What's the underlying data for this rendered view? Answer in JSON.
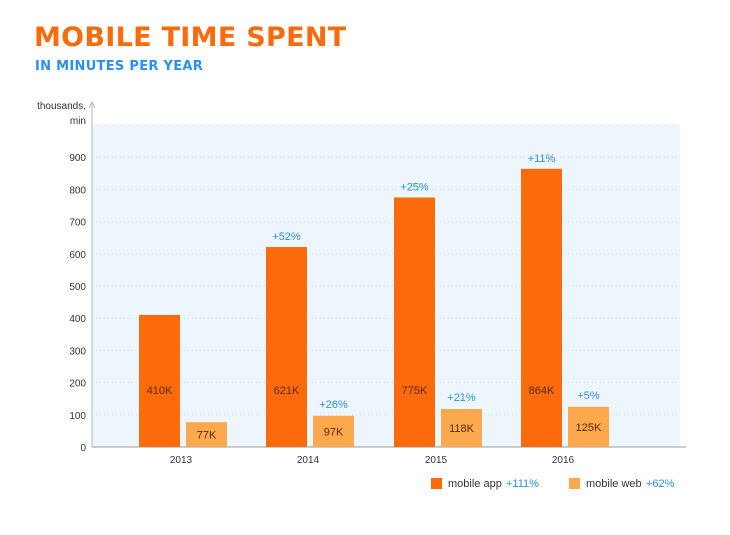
{
  "header": {
    "title": "MOBILE TIME SPENT",
    "subtitle": "IN MINUTES PER YEAR"
  },
  "colors": {
    "app": "#fb6b0b",
    "web": "#fca84c",
    "growth": "#2a8ff0",
    "plot_bg": "#eef6fd",
    "grid": "#cfe3f3"
  },
  "chart_data": {
    "type": "bar",
    "title": "MOBILE TIME SPENT",
    "subtitle": "IN MINUTES PER YEAR",
    "ylabel": "thousands, min",
    "xlabel": "",
    "categories": [
      "2013",
      "2014",
      "2015",
      "2016"
    ],
    "ylim": [
      0,
      1000
    ],
    "yticks": [
      0,
      100,
      200,
      300,
      400,
      500,
      600,
      700,
      800,
      900
    ],
    "grid": true,
    "legend_position": "bottom-right",
    "series": [
      {
        "name": "mobile app",
        "values": [
          410,
          621,
          775,
          864
        ],
        "labels": [
          "410K",
          "621K",
          "775K",
          "864K"
        ],
        "growth": [
          "",
          "+52%",
          "+25%",
          "+11%"
        ],
        "total_growth": "+111%"
      },
      {
        "name": "mobile web",
        "values": [
          77,
          97,
          118,
          125
        ],
        "labels": [
          "77K",
          "97K",
          "118K",
          "125K"
        ],
        "growth": [
          "",
          "+26%",
          "+21%",
          "+5%"
        ],
        "total_growth": "+62%"
      }
    ]
  }
}
